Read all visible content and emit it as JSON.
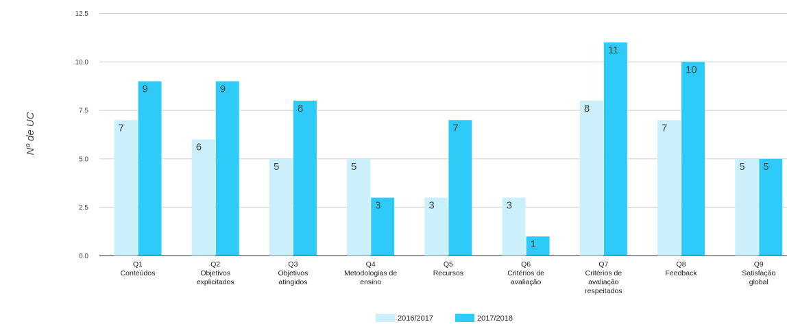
{
  "chart_data": {
    "type": "bar",
    "ylabel": "Nº de UC",
    "xlabel": "",
    "ylim": [
      0,
      12.5
    ],
    "yticks": [
      "0.0",
      "2.5",
      "5.0",
      "7.5",
      "10.0",
      "12.5"
    ],
    "grid": true,
    "legend_position": "bottom",
    "categories": [
      [
        "Q1",
        "Conteúdos"
      ],
      [
        "Q2",
        "Objetivos",
        "explicitados"
      ],
      [
        "Q3",
        "Objetivos",
        "atingidos"
      ],
      [
        "Q4",
        "Metodologias de",
        "ensino"
      ],
      [
        "Q5",
        "Recursos"
      ],
      [
        "Q6",
        "Critérios de",
        "avaliação"
      ],
      [
        "Q7",
        "Critérios de",
        "avaliação",
        "respeitados"
      ],
      [
        "Q8",
        "Feedback"
      ],
      [
        "Q9",
        "Satisfação",
        "global"
      ]
    ],
    "series": [
      {
        "name": "2016/2017",
        "color": "#cbf0fb",
        "values": [
          7,
          6,
          5,
          5,
          3,
          3,
          8,
          7,
          5
        ]
      },
      {
        "name": "2017/2018",
        "color": "#2ecbf9",
        "values": [
          9,
          9,
          8,
          3,
          7,
          1,
          11,
          10,
          5
        ]
      }
    ]
  }
}
